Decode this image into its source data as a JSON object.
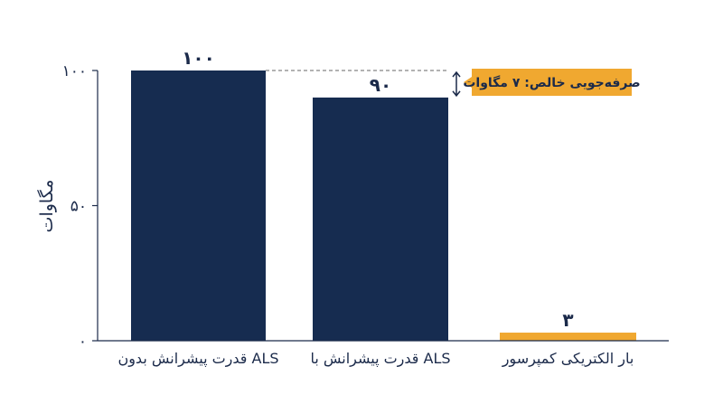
{
  "colors": {
    "navy": "#162c50",
    "orange": "#f0a830",
    "axis": "#1b2a4a",
    "white": "#ffffff"
  },
  "chart_data": {
    "type": "bar",
    "ylabel": "مگاوات",
    "ylim": [
      0,
      100
    ],
    "yticks": [
      0,
      50,
      100
    ],
    "ytick_labels": [
      "۰",
      "۵۰",
      "۱۰۰"
    ],
    "categories": [
      "قدرت پیشرانش بدون ALS",
      "قدرت پیشرانش با ALS",
      "بار الکتریکی کمپرسور"
    ],
    "values": [
      100,
      90,
      3
    ],
    "value_labels": [
      "۱۰۰",
      "۹۰",
      "۳"
    ],
    "bar_colors": [
      "#162c50",
      "#162c50",
      "#f0a830"
    ],
    "annotation": {
      "text": "صرفه‌جویی خالص: ۷ مگاوات",
      "from_value": 100,
      "to_value": 90,
      "icon": "double-headed-arrow"
    }
  }
}
